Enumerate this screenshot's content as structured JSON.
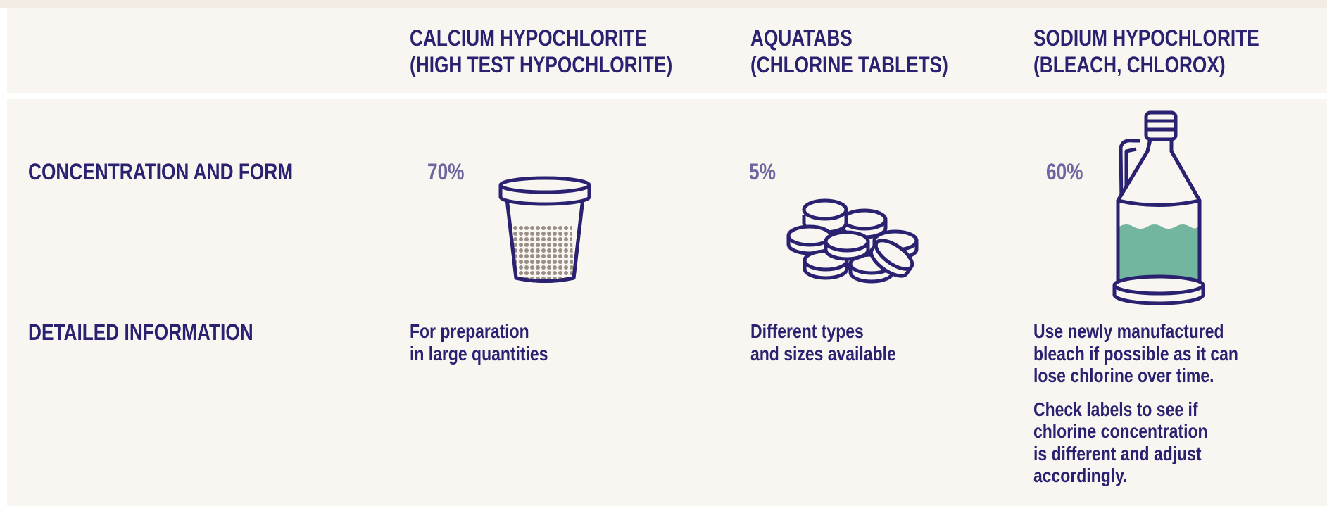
{
  "header": {
    "columns": [
      {
        "lines": [
          "CALCIUM HYPOCHLORITE",
          "(HIGH TEST HYPOCHLORITE)"
        ]
      },
      {
        "lines": [
          "AQUATABS",
          "(CHLORINE TABLETS)"
        ]
      },
      {
        "lines": [
          "SODIUM HYPOCHLORITE",
          "(BLEACH, CHLOROX)"
        ]
      }
    ]
  },
  "rows": [
    {
      "label": "CONCENTRATION AND FORM",
      "cells": [
        "70%",
        "5%",
        "60%"
      ]
    },
    {
      "label": "DETAILED INFORMATION",
      "cells": [
        {
          "paragraphs": [
            [
              "For preparation",
              "in large quantities"
            ]
          ]
        },
        {
          "paragraphs": [
            [
              "Different types",
              "and sizes available"
            ]
          ]
        },
        {
          "paragraphs": [
            [
              "Use newly manufactured",
              "bleach if possible as it can",
              "lose chlorine over time."
            ],
            [
              "Check labels to see if",
              "chlorine concentration",
              "is different and adjust",
              "accordingly."
            ]
          ]
        }
      ]
    }
  ]
}
